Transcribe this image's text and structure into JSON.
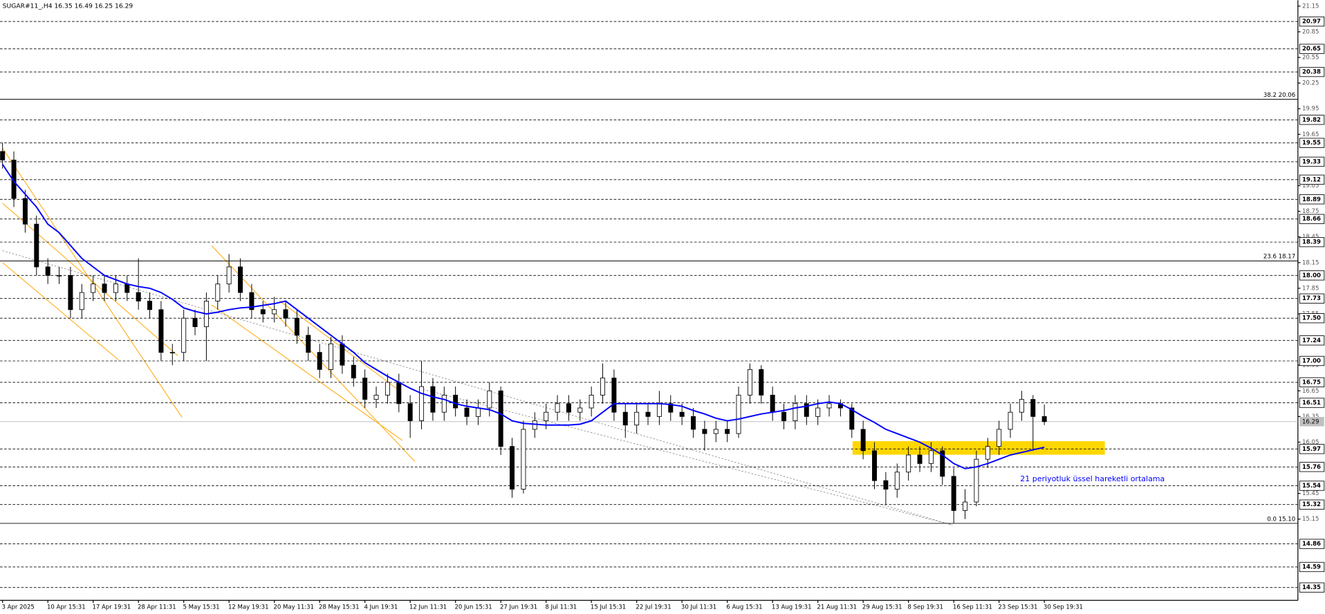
{
  "chart_data": {
    "type": "candlestick",
    "title": "SUGAR#11_,H4  16.35 16.49 16.25 16.29",
    "categories": [
      "3 Apr 2025",
      null,
      null,
      null,
      "10 Apr 15:31",
      null,
      null,
      null,
      "17 Apr 19:31",
      null,
      null,
      null,
      "28 Apr 11:31",
      null,
      null,
      null,
      "5 May 15:31",
      null,
      null,
      null,
      "12 May 19:31",
      null,
      null,
      null,
      "20 May 11:31",
      null,
      null,
      null,
      "28 May 15:31",
      null,
      null,
      null,
      "4 Jun 19:31",
      null,
      null,
      null,
      "12 Jun 11:31",
      null,
      null,
      null,
      "20 Jun 15:31",
      null,
      null,
      null,
      "27 Jun 19:31",
      null,
      null,
      null,
      "8 Jul 11:31",
      null,
      null,
      null,
      "15 Jul 15:31",
      null,
      null,
      null,
      "22 Jul 19:31",
      null,
      null,
      null,
      "30 Jul 11:31",
      null,
      null,
      null,
      "6 Aug 15:31",
      null,
      null,
      null,
      "13 Aug 19:31",
      null,
      null,
      null,
      "21 Aug 11:31",
      null,
      null,
      null,
      "29 Aug 15:31",
      null,
      null,
      null,
      "8 Sep 19:31",
      null,
      null,
      null,
      "16 Sep 11:31",
      null,
      null,
      null,
      "23 Sep 15:31",
      null,
      null,
      null,
      "30 Sep 19:31"
    ],
    "open": [
      19.45,
      19.35,
      18.9,
      18.6,
      18.1,
      18.0,
      18.0,
      17.6,
      17.8,
      17.9,
      17.8,
      17.9,
      17.8,
      17.7,
      17.6,
      17.1,
      17.1,
      17.5,
      17.4,
      17.7,
      17.9,
      18.1,
      17.8,
      17.6,
      17.55,
      17.6,
      17.5,
      17.3,
      17.1,
      16.9,
      17.2,
      16.95,
      16.8,
      16.55,
      16.6,
      16.75,
      16.5,
      16.3,
      16.7,
      16.4,
      16.6,
      16.45,
      16.35,
      16.45,
      16.65,
      16.0,
      15.5,
      16.2,
      16.3,
      16.4,
      16.5,
      16.4,
      16.45,
      16.6,
      16.8,
      16.4,
      16.25,
      16.4,
      16.35,
      16.5,
      16.4,
      16.35,
      16.2,
      16.15,
      16.2,
      16.15,
      16.6,
      16.9,
      16.6,
      16.4,
      16.3,
      16.5,
      16.35,
      16.45,
      16.5,
      16.45,
      16.2,
      15.95,
      15.6,
      15.5,
      15.7,
      15.9,
      15.8,
      15.95,
      15.65,
      15.25,
      15.35,
      15.85,
      16.0,
      16.2,
      16.4,
      16.55,
      16.35
    ],
    "high": [
      19.55,
      19.45,
      19.0,
      18.7,
      18.2,
      18.1,
      18.1,
      17.9,
      18.0,
      18.0,
      18.0,
      18.0,
      18.2,
      17.8,
      17.7,
      17.2,
      17.6,
      17.6,
      17.8,
      18.0,
      18.25,
      18.2,
      17.9,
      17.7,
      17.75,
      17.7,
      17.6,
      17.4,
      17.2,
      17.28,
      17.3,
      17.05,
      16.9,
      16.7,
      16.85,
      16.85,
      16.6,
      17.0,
      16.8,
      16.7,
      16.7,
      16.55,
      16.55,
      16.75,
      16.7,
      16.1,
      16.3,
      16.4,
      16.5,
      16.6,
      16.6,
      16.55,
      16.7,
      16.97,
      16.9,
      16.5,
      16.5,
      16.5,
      16.65,
      16.6,
      16.5,
      16.45,
      16.3,
      16.3,
      16.3,
      16.7,
      16.97,
      16.95,
      16.7,
      16.5,
      16.6,
      16.6,
      16.55,
      16.6,
      16.55,
      16.5,
      16.3,
      16.05,
      15.7,
      15.8,
      16.0,
      16.0,
      16.05,
      16.0,
      15.75,
      15.5,
      15.95,
      16.1,
      16.3,
      16.5,
      16.65,
      16.6,
      16.49
    ],
    "low": [
      19.25,
      18.8,
      18.5,
      18.0,
      17.9,
      17.9,
      17.5,
      17.5,
      17.7,
      17.7,
      17.7,
      17.7,
      17.6,
      17.5,
      17.0,
      16.95,
      17.0,
      17.3,
      17.0,
      17.6,
      17.8,
      17.7,
      17.5,
      17.45,
      17.45,
      17.4,
      17.2,
      17.0,
      16.8,
      16.8,
      16.85,
      16.7,
      16.45,
      16.45,
      16.5,
      16.4,
      16.1,
      16.2,
      16.3,
      16.3,
      16.35,
      16.25,
      16.25,
      16.35,
      15.9,
      15.4,
      15.45,
      16.1,
      16.2,
      16.3,
      16.3,
      16.3,
      16.35,
      16.5,
      16.3,
      16.1,
      16.15,
      16.25,
      16.25,
      16.3,
      16.25,
      16.1,
      15.95,
      16.05,
      16.05,
      16.1,
      16.5,
      16.5,
      16.3,
      16.2,
      16.2,
      16.25,
      16.25,
      16.35,
      16.35,
      16.1,
      15.85,
      15.5,
      15.32,
      15.4,
      15.6,
      15.7,
      15.7,
      15.55,
      15.1,
      15.15,
      15.3,
      15.75,
      15.9,
      16.1,
      16.3,
      15.95,
      16.25
    ],
    "close": [
      19.35,
      18.9,
      18.6,
      18.1,
      18.0,
      18.0,
      17.6,
      17.8,
      17.9,
      17.8,
      17.9,
      17.8,
      17.7,
      17.6,
      17.1,
      17.1,
      17.5,
      17.4,
      17.7,
      17.9,
      18.1,
      17.8,
      17.6,
      17.55,
      17.6,
      17.5,
      17.3,
      17.1,
      16.9,
      17.2,
      16.95,
      16.8,
      16.55,
      16.6,
      16.75,
      16.5,
      16.3,
      16.7,
      16.4,
      16.6,
      16.45,
      16.35,
      16.45,
      16.65,
      16.0,
      15.5,
      16.2,
      16.3,
      16.4,
      16.5,
      16.4,
      16.45,
      16.6,
      16.8,
      16.4,
      16.25,
      16.4,
      16.35,
      16.5,
      16.4,
      16.35,
      16.2,
      16.15,
      16.2,
      16.15,
      16.6,
      16.9,
      16.6,
      16.4,
      16.3,
      16.5,
      16.35,
      16.45,
      16.5,
      16.45,
      16.2,
      15.95,
      15.6,
      15.5,
      15.7,
      15.9,
      15.8,
      15.95,
      15.65,
      15.25,
      15.35,
      15.85,
      16.0,
      16.2,
      16.4,
      16.55,
      16.35,
      16.29
    ],
    "color_up": "#ffffff",
    "color_down": "#000000",
    "series": [
      {
        "name": "21 periyotluk üssel hareketli ortalama",
        "color": "#0000ff",
        "values": [
          19.3,
          19.1,
          18.95,
          18.8,
          18.6,
          18.5,
          18.35,
          18.2,
          18.1,
          18.0,
          17.95,
          17.9,
          17.87,
          17.85,
          17.8,
          17.72,
          17.62,
          17.58,
          17.55,
          17.57,
          17.6,
          17.62,
          17.63,
          17.65,
          17.67,
          17.7,
          17.6,
          17.5,
          17.4,
          17.3,
          17.2,
          17.1,
          16.98,
          16.9,
          16.82,
          16.75,
          16.68,
          16.62,
          16.58,
          16.55,
          16.5,
          16.47,
          16.45,
          16.43,
          16.38,
          16.3,
          16.27,
          16.26,
          16.25,
          16.25,
          16.25,
          16.26,
          16.3,
          16.4,
          16.5,
          16.5,
          16.5,
          16.5,
          16.5,
          16.49,
          16.47,
          16.42,
          16.38,
          16.33,
          16.3,
          16.32,
          16.35,
          16.38,
          16.4,
          16.42,
          16.45,
          16.47,
          16.5,
          16.52,
          16.5,
          16.43,
          16.35,
          16.28,
          16.2,
          16.15,
          16.1,
          16.05,
          15.98,
          15.9,
          15.8,
          15.74,
          15.76,
          15.8,
          15.85,
          15.9,
          15.93,
          15.96,
          15.99
        ]
      }
    ],
    "ylim": [
      14.2,
      21.22
    ],
    "yticks": [
      21.15,
      20.85,
      20.55,
      20.25,
      19.95,
      19.65,
      19.05,
      18.75,
      18.45,
      18.15,
      17.85,
      17.55,
      16.95,
      16.65,
      16.35,
      16.05,
      15.45,
      15.15
    ],
    "levels": [
      20.97,
      20.65,
      20.38,
      19.82,
      19.55,
      19.33,
      19.12,
      18.89,
      18.66,
      18.39,
      {
        "value": 18,
        "label": "18.00"
      },
      17.73,
      {
        "value": 17.5,
        "label": "17.50"
      },
      17.24,
      {
        "value": 17,
        "label": "17.00"
      },
      16.75,
      16.51,
      15.97,
      15.76,
      15.54,
      15.32,
      14.86,
      14.59,
      14.35
    ],
    "fibo_levels": [
      {
        "value": 20.06,
        "label": "38.2 20.06"
      },
      {
        "value": 18.17,
        "label": "23.6 18.17"
      },
      {
        "value": 15.1,
        "label": "0.0 15.10"
      }
    ],
    "current_price": 16.29
  }
}
